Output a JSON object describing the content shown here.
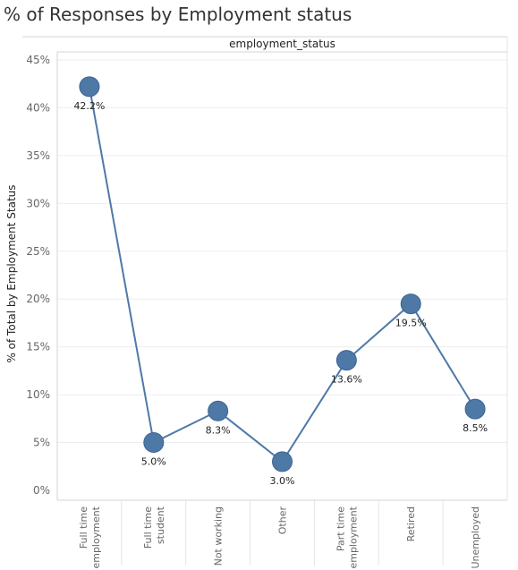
{
  "page": {
    "title": "% of Responses by Employment status"
  },
  "chart_data": {
    "type": "line",
    "column_header": "employment_status",
    "ylabel": "% of Total by Employment Status",
    "xlabel": "",
    "categories": [
      [
        "Full time",
        "employment"
      ],
      [
        "Full time",
        "student"
      ],
      [
        "Not working"
      ],
      [
        "Other"
      ],
      [
        "Part time",
        "employment"
      ],
      [
        "Retired"
      ],
      [
        "Unemployed"
      ]
    ],
    "values": [
      42.2,
      5.0,
      8.3,
      3.0,
      13.6,
      19.5,
      8.5
    ],
    "data_labels": [
      "42.2%",
      "5.0%",
      "8.3%",
      "3.0%",
      "13.6%",
      "19.5%",
      "8.5%"
    ],
    "ylim": [
      0,
      45
    ],
    "yticks": [
      0,
      5,
      10,
      15,
      20,
      25,
      30,
      35,
      40,
      45
    ],
    "ytick_labels": [
      "0%",
      "5%",
      "10%",
      "15%",
      "20%",
      "25%",
      "30%",
      "35%",
      "40%",
      "45%"
    ],
    "grid": true,
    "colors": {
      "line": "#4e79a7",
      "marker": "#4e79a7",
      "marker_edge": "#3b6491",
      "grid": "#ededed",
      "axis": "#d4d4d4"
    }
  }
}
